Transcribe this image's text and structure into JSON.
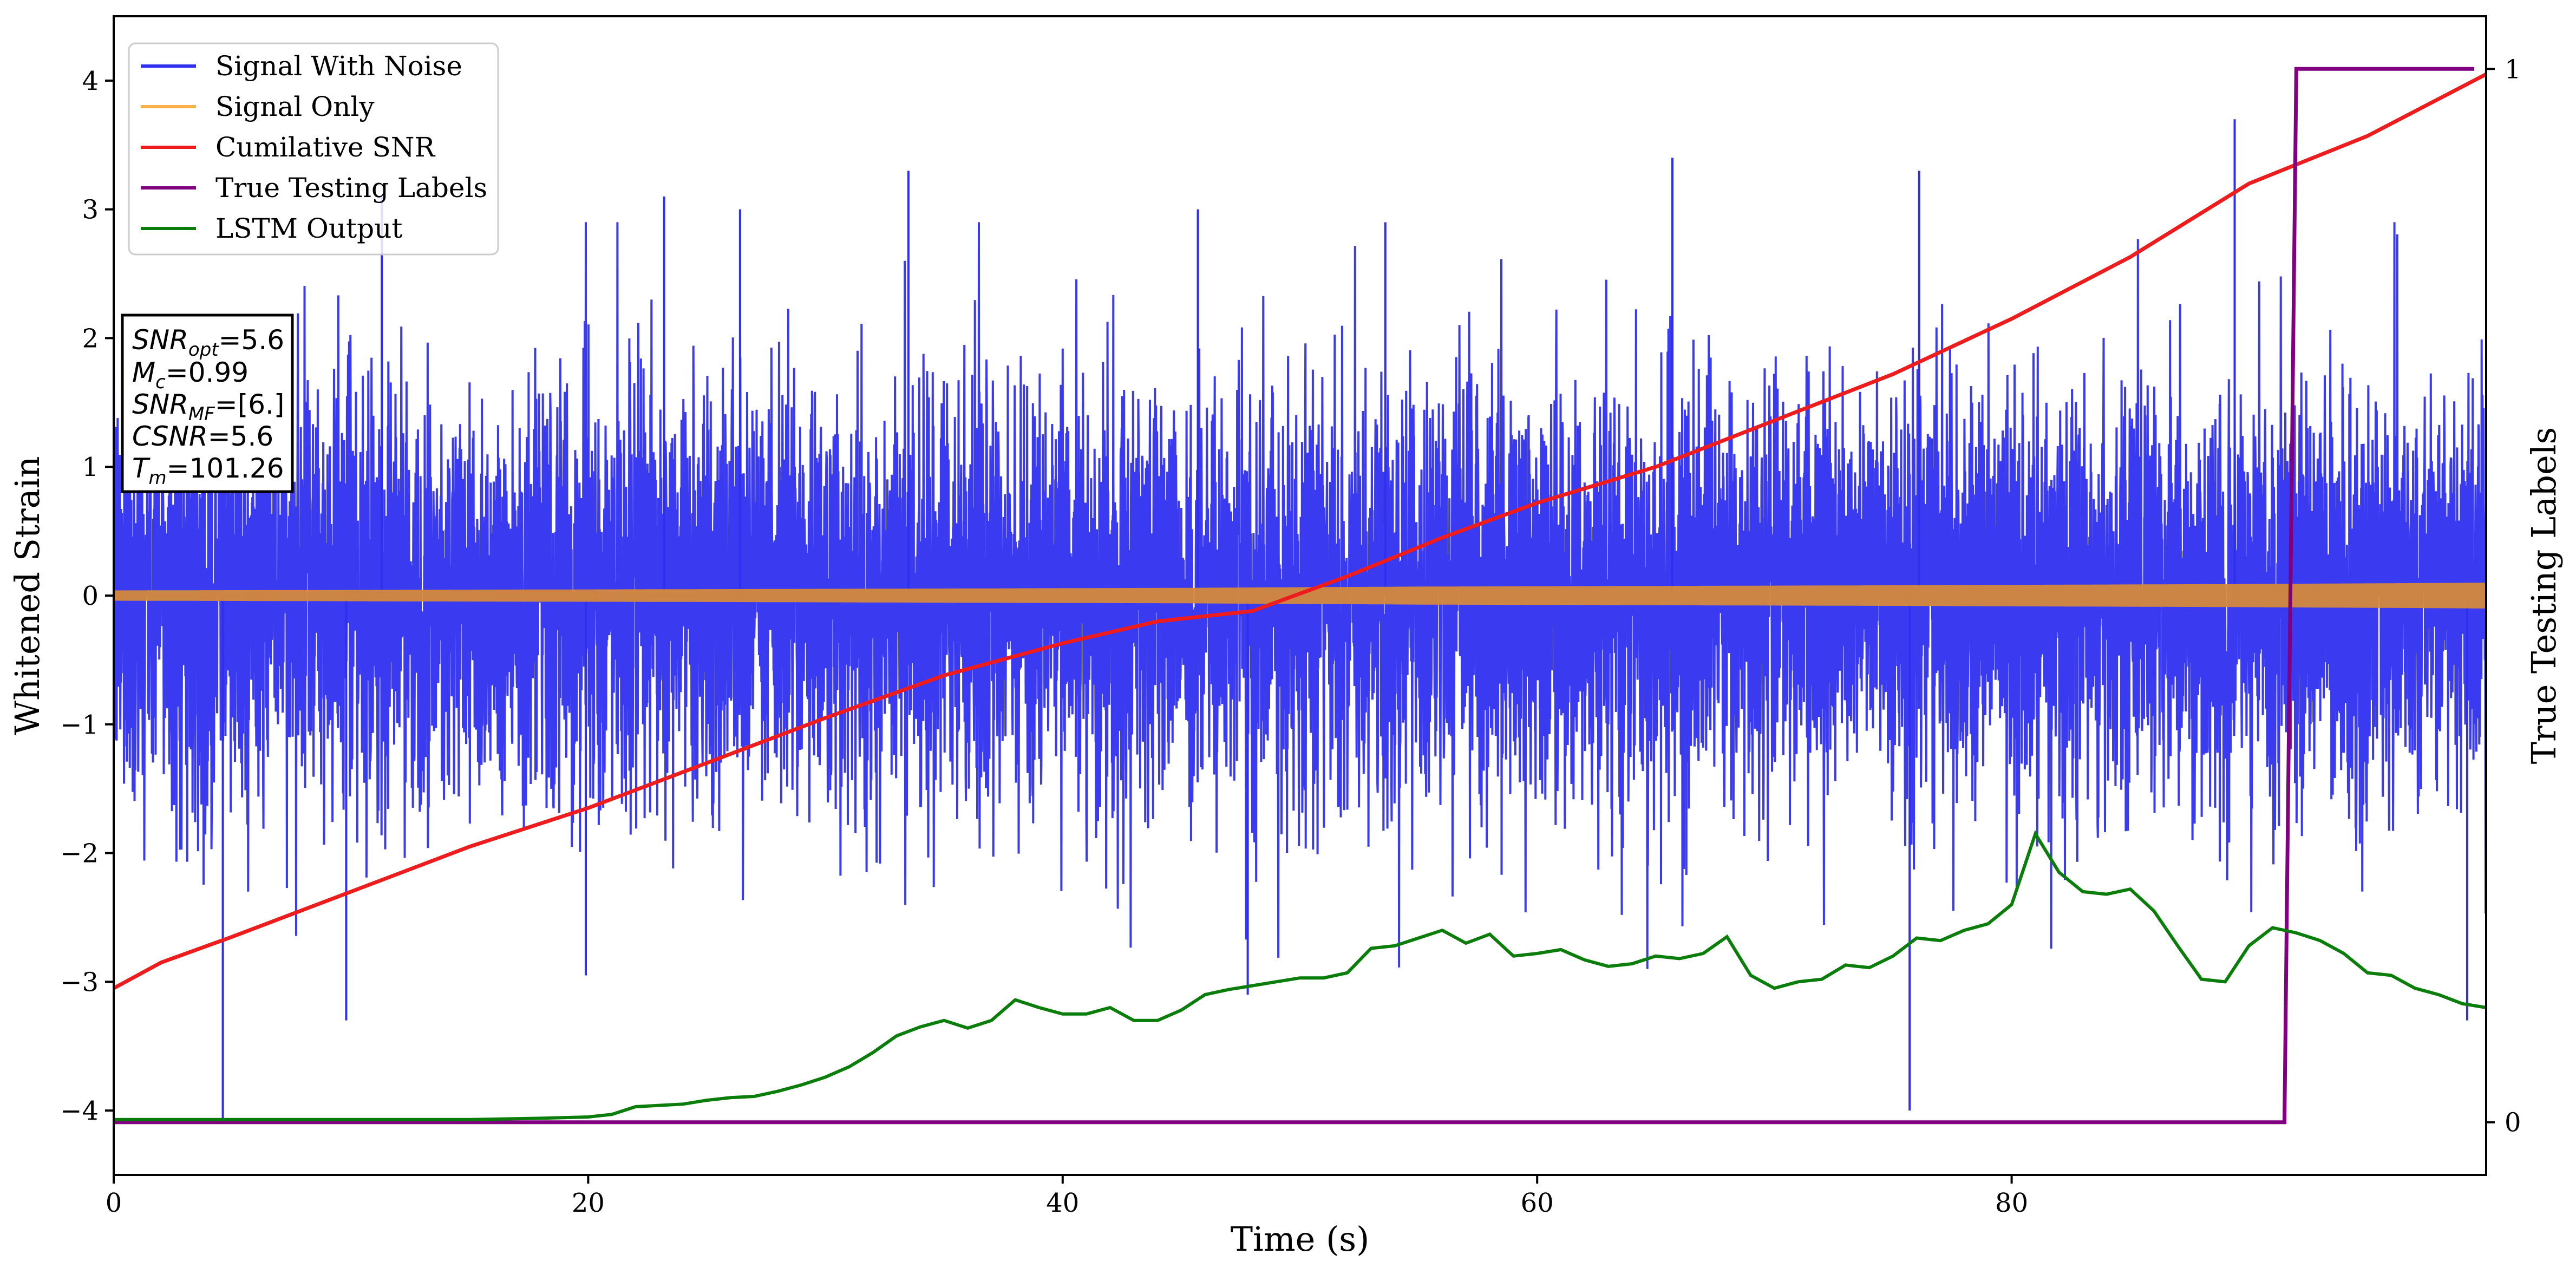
{
  "chart_data": {
    "type": "line",
    "title": "",
    "xlabel": "Time (s)",
    "ylabel": "Whitened Strain",
    "ylabel_right": "True Testing Labels",
    "xlim": [
      0,
      100
    ],
    "ylim": [
      -4.5,
      4.5
    ],
    "ylim_right": [
      -0.05,
      1.05
    ],
    "x_ticks": [
      0,
      20,
      40,
      60,
      80
    ],
    "y_ticks": [
      -4,
      -3,
      -2,
      -1,
      0,
      1,
      2,
      3,
      4
    ],
    "y_ticks_right": [
      0,
      1
    ],
    "grid": false,
    "legend_position": "upper-left",
    "info_box": {
      "lines": [
        {
          "sym": "SNR",
          "sub": "opt",
          "eq": "=5.6"
        },
        {
          "sym": "M",
          "sub": "c",
          "eq": "=0.99"
        },
        {
          "sym": "SNR",
          "sub": "MF",
          "eq": "=[6.]"
        },
        {
          "sym": "CSNR",
          "sub": "",
          "eq": "=5.6"
        },
        {
          "sym": "T",
          "sub": "m",
          "eq": "=101.26"
        }
      ]
    },
    "series": [
      {
        "name": "Signal With Noise",
        "color": "#2f2ff0",
        "axis": "left",
        "noise_band": [
          -1.6,
          1.6
        ],
        "notable_spikes": [
          {
            "x": 4.6,
            "y": -4.1
          },
          {
            "x": 9.8,
            "y": -3.3
          },
          {
            "x": 11.3,
            "y": 3.1
          },
          {
            "x": 19.9,
            "y": -2.95
          },
          {
            "x": 23.2,
            "y": 3.1
          },
          {
            "x": 26.4,
            "y": 3.0
          },
          {
            "x": 33.5,
            "y": 3.3
          },
          {
            "x": 45.7,
            "y": 3.0
          },
          {
            "x": 47.8,
            "y": -3.1
          },
          {
            "x": 53.6,
            "y": 2.9
          },
          {
            "x": 65.7,
            "y": 3.4
          },
          {
            "x": 75.7,
            "y": -4.0
          },
          {
            "x": 76.1,
            "y": 3.3
          },
          {
            "x": 89.4,
            "y": 3.7
          },
          {
            "x": 99.2,
            "y": -3.3
          }
        ]
      },
      {
        "name": "Signal Only",
        "color": "#f7b34a",
        "axis": "left",
        "envelope": {
          "x": [
            0,
            25,
            45,
            55,
            75,
            90,
            100
          ],
          "amplitude": [
            0.04,
            0.05,
            0.06,
            0.07,
            0.08,
            0.09,
            0.1
          ]
        }
      },
      {
        "name": "Cumilative SNR",
        "color": "#ee1c1c",
        "axis": "left",
        "x": [
          0,
          2,
          5,
          10,
          15,
          20,
          25,
          30,
          35,
          40,
          44,
          48,
          52,
          56,
          60,
          65,
          70,
          75,
          80,
          85,
          90,
          95,
          100
        ],
        "y": [
          -3.05,
          -2.85,
          -2.65,
          -2.3,
          -1.95,
          -1.65,
          -1.3,
          -0.95,
          -0.62,
          -0.37,
          -0.2,
          -0.12,
          0.15,
          0.45,
          0.72,
          1.0,
          1.36,
          1.72,
          2.15,
          2.63,
          3.2,
          3.57,
          4.05
        ]
      },
      {
        "name": "True Testing Labels",
        "color": "#800080",
        "axis": "right",
        "x": [
          0,
          91.5,
          92.0,
          99.5
        ],
        "y": [
          0,
          0,
          1,
          1
        ]
      },
      {
        "name": "LSTM Output",
        "color": "#0a7d0a",
        "axis": "left",
        "x": [
          0,
          10,
          15,
          18,
          20,
          21,
          22,
          23,
          24,
          25,
          26,
          27,
          28,
          29,
          30,
          31,
          32,
          33,
          34,
          35,
          36,
          37,
          38,
          39,
          40,
          41,
          42,
          43,
          44,
          45,
          46,
          47,
          48,
          49,
          50,
          51,
          52,
          53,
          54,
          55,
          56,
          57,
          58,
          59,
          60,
          61,
          62,
          63,
          64,
          65,
          66,
          67,
          68,
          69,
          70,
          71,
          72,
          73,
          74,
          75,
          76,
          77,
          78,
          79,
          80,
          81,
          82,
          83,
          84,
          85,
          86,
          87,
          88,
          89,
          90,
          91,
          92,
          93,
          94,
          95,
          96,
          97,
          98,
          99,
          100
        ],
        "y": [
          -4.07,
          -4.07,
          -4.07,
          -4.06,
          -4.05,
          -4.03,
          -3.97,
          -3.96,
          -3.95,
          -3.92,
          -3.9,
          -3.89,
          -3.85,
          -3.8,
          -3.74,
          -3.66,
          -3.55,
          -3.42,
          -3.35,
          -3.3,
          -3.36,
          -3.3,
          -3.14,
          -3.2,
          -3.25,
          -3.25,
          -3.2,
          -3.3,
          -3.3,
          -3.22,
          -3.1,
          -3.06,
          -3.03,
          -3.0,
          -2.97,
          -2.97,
          -2.93,
          -2.74,
          -2.72,
          -2.66,
          -2.6,
          -2.7,
          -2.63,
          -2.8,
          -2.78,
          -2.75,
          -2.83,
          -2.88,
          -2.86,
          -2.8,
          -2.82,
          -2.78,
          -2.65,
          -2.95,
          -3.05,
          -3.0,
          -2.98,
          -2.87,
          -2.89,
          -2.8,
          -2.66,
          -2.68,
          -2.6,
          -2.55,
          -2.4,
          -1.85,
          -2.15,
          -2.3,
          -2.32,
          -2.28,
          -2.45,
          -2.72,
          -2.98,
          -3.0,
          -2.72,
          -2.58,
          -2.62,
          -2.68,
          -2.78,
          -2.93,
          -2.95,
          -3.05,
          -3.1,
          -3.17,
          -3.2
        ]
      }
    ]
  }
}
